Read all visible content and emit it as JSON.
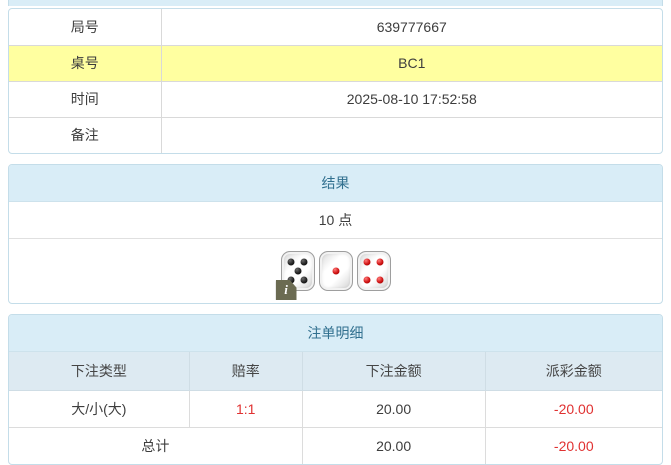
{
  "colors": {
    "heading_bg": "#d9edf7",
    "heading_text": "#31708f",
    "panel_border": "#c4dde9",
    "highlight_row_bg": "#ffffa0",
    "subheader_bg": "#ddeaf2",
    "negative_text": "#e03131",
    "pip_black": "#1a1a1a",
    "pip_red": "#cf1212"
  },
  "info_table": {
    "rows": [
      {
        "label": "局号",
        "value": "639777667",
        "highlight": false
      },
      {
        "label": "桌号",
        "value": "BC1",
        "highlight": true
      },
      {
        "label": "时间",
        "value": "2025-08-10 17:52:58",
        "highlight": false
      },
      {
        "label": "备注",
        "value": "",
        "highlight": false
      }
    ]
  },
  "result_panel": {
    "title": "结果",
    "points": "10 点",
    "dice": [
      {
        "value": 5,
        "color": "black"
      },
      {
        "value": 1,
        "color": "red"
      },
      {
        "value": 4,
        "color": "red"
      }
    ],
    "info_icon_glyph": "i"
  },
  "bet_panel": {
    "title": "注单明细",
    "columns": [
      "下注类型",
      "赔率",
      "下注金额",
      "派彩金额"
    ],
    "rows": [
      {
        "type": "大/小(大)",
        "odds": "1:1",
        "bet": "20.00",
        "payout": "-20.00"
      }
    ],
    "total": {
      "label": "总计",
      "bet": "20.00",
      "payout": "-20.00"
    }
  }
}
